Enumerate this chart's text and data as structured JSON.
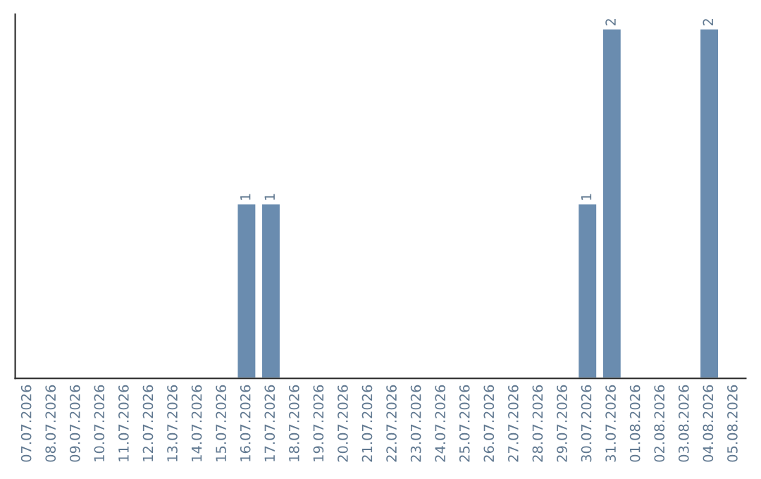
{
  "chart_data": {
    "type": "bar",
    "categories": [
      "07.07.2026",
      "08.07.2026",
      "09.07.2026",
      "10.07.2026",
      "11.07.2026",
      "12.07.2026",
      "13.07.2026",
      "14.07.2026",
      "15.07.2026",
      "16.07.2026",
      "17.07.2026",
      "18.07.2026",
      "19.07.2026",
      "20.07.2026",
      "21.07.2026",
      "22.07.2026",
      "23.07.2026",
      "24.07.2026",
      "25.07.2026",
      "26.07.2026",
      "27.07.2026",
      "28.07.2026",
      "29.07.2026",
      "30.07.2026",
      "31.07.2026",
      "01.08.2026",
      "02.08.2026",
      "03.08.2026",
      "04.08.2026",
      "05.08.2026"
    ],
    "values": [
      0,
      0,
      0,
      0,
      0,
      0,
      0,
      0,
      0,
      1,
      1,
      0,
      0,
      0,
      0,
      0,
      0,
      0,
      0,
      0,
      0,
      0,
      0,
      1,
      2,
      0,
      0,
      0,
      2,
      0
    ],
    "value_labels": [
      null,
      null,
      null,
      null,
      null,
      null,
      null,
      null,
      null,
      "1",
      "1",
      null,
      null,
      null,
      null,
      null,
      null,
      null,
      null,
      null,
      null,
      null,
      null,
      "1",
      "2",
      null,
      null,
      null,
      "2",
      null
    ],
    "color": "#6a8caf",
    "ylim": [
      0,
      2.08
    ],
    "tick_labels": "x",
    "grid": false,
    "legend": false
  }
}
